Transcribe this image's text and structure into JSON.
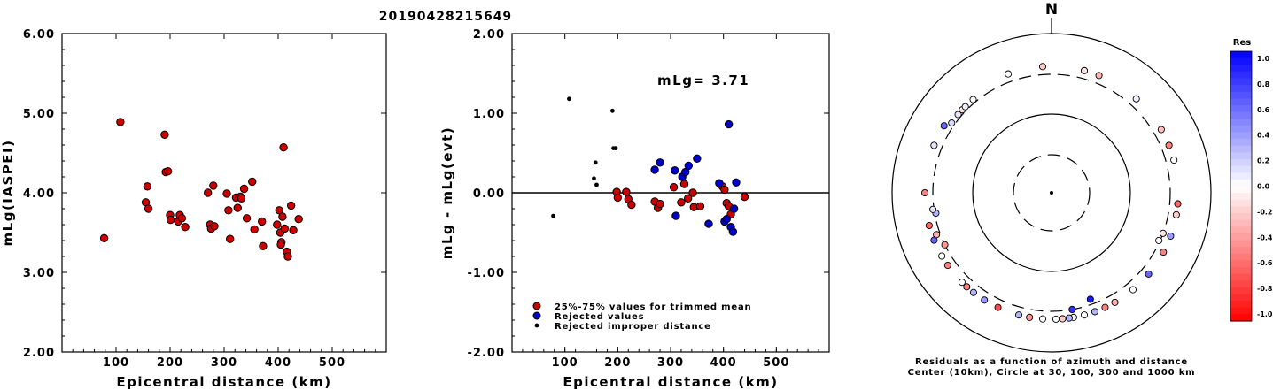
{
  "title": "20190428215649",
  "colors": {
    "accepted": "#cc0000",
    "rejected": "#0000cc",
    "improper": "#000000"
  },
  "chart_data": [
    {
      "type": "scatter",
      "xlabel": "Epicentral distance (km)",
      "ylabel": "mLg(IASPEI)",
      "xlim": [
        0,
        600
      ],
      "ylim": [
        2.0,
        6.0
      ],
      "x_ticks": [
        "100",
        "200",
        "300",
        "400",
        "500"
      ],
      "y_ticks": [
        "2.00",
        "3.00",
        "4.00",
        "5.00",
        "6.00"
      ],
      "points": [
        [
          78,
          3.43
        ],
        [
          108,
          4.89
        ],
        [
          155,
          3.88
        ],
        [
          158,
          4.08
        ],
        [
          160,
          3.8
        ],
        [
          190,
          4.73
        ],
        [
          192,
          4.26
        ],
        [
          196,
          4.27
        ],
        [
          200,
          3.72
        ],
        [
          201,
          3.66
        ],
        [
          215,
          3.64
        ],
        [
          218,
          3.72
        ],
        [
          222,
          3.68
        ],
        [
          228,
          3.57
        ],
        [
          270,
          4.0
        ],
        [
          274,
          3.6
        ],
        [
          276,
          3.55
        ],
        [
          280,
          4.09
        ],
        [
          282,
          3.58
        ],
        [
          305,
          3.99
        ],
        [
          308,
          3.78
        ],
        [
          311,
          3.42
        ],
        [
          322,
          3.94
        ],
        [
          325,
          3.81
        ],
        [
          330,
          3.95
        ],
        [
          332,
          3.93
        ],
        [
          337,
          4.05
        ],
        [
          342,
          3.68
        ],
        [
          352,
          4.14
        ],
        [
          356,
          3.54
        ],
        [
          370,
          3.64
        ],
        [
          372,
          3.33
        ],
        [
          398,
          3.6
        ],
        [
          402,
          3.78
        ],
        [
          404,
          3.5
        ],
        [
          406,
          3.38
        ],
        [
          410,
          4.57
        ],
        [
          412,
          3.55
        ],
        [
          416,
          3.26
        ],
        [
          418,
          3.2
        ],
        [
          424,
          3.84
        ],
        [
          428,
          3.53
        ],
        [
          438,
          3.67
        ],
        [
          405,
          3.35
        ],
        [
          408,
          3.7
        ]
      ]
    },
    {
      "type": "scatter",
      "xlabel": "Epicentral distance (km)",
      "ylabel": "mLg - mLg(evt)",
      "xlim": [
        0,
        600
      ],
      "ylim": [
        -2.0,
        2.0
      ],
      "x_ticks": [
        "100",
        "200",
        "300",
        "400",
        "500"
      ],
      "y_ticks": [
        "-2.00",
        "-1.00",
        "0.00",
        "1.00",
        "2.00"
      ],
      "annotation": "mLg= 3.71",
      "legend": [
        "25%-75% values for trimmed mean",
        "Rejected values",
        "Rejected improper distance"
      ],
      "series": [
        {
          "name": "25%-75% values for trimmed mean",
          "points": [
            [
              198,
              0.01
            ],
            [
              200,
              -0.06
            ],
            [
              216,
              0.01
            ],
            [
              220,
              -0.08
            ],
            [
              226,
              -0.15
            ],
            [
              270,
              -0.11
            ],
            [
              276,
              -0.19
            ],
            [
              280,
              -0.14
            ],
            [
              306,
              0.07
            ],
            [
              320,
              -0.12
            ],
            [
              326,
              0.11
            ],
            [
              333,
              -0.07
            ],
            [
              342,
              0.0
            ],
            [
              344,
              -0.18
            ],
            [
              356,
              -0.17
            ],
            [
              398,
              0.08
            ],
            [
              402,
              0.04
            ],
            [
              406,
              -0.13
            ],
            [
              410,
              -0.17
            ],
            [
              414,
              -0.27
            ],
            [
              440,
              -0.05
            ]
          ]
        },
        {
          "name": "Rejected values",
          "points": [
            [
              270,
              0.29
            ],
            [
              280,
              0.38
            ],
            [
              308,
              0.28
            ],
            [
              310,
              -0.29
            ],
            [
              322,
              0.2
            ],
            [
              328,
              0.26
            ],
            [
              334,
              0.34
            ],
            [
              350,
              0.43
            ],
            [
              372,
              -0.39
            ],
            [
              392,
              0.12
            ],
            [
              402,
              -0.36
            ],
            [
              406,
              -0.33
            ],
            [
              410,
              0.86
            ],
            [
              414,
              -0.43
            ],
            [
              418,
              -0.49
            ],
            [
              420,
              -0.2
            ],
            [
              424,
              0.13
            ]
          ]
        },
        {
          "name": "Rejected improper distance",
          "points": [
            [
              78,
              -0.29
            ],
            [
              108,
              1.18
            ],
            [
              155,
              0.18
            ],
            [
              158,
              0.38
            ],
            [
              160,
              0.1
            ],
            [
              190,
              1.03
            ],
            [
              192,
              0.56
            ],
            [
              196,
              0.56
            ]
          ]
        }
      ]
    },
    {
      "type": "scatter",
      "north_label": "N",
      "colorbar_title": "Res",
      "colorbar_ticks": [
        "1.0",
        "0.8",
        "0.6",
        "0.4",
        "0.2",
        "0.0",
        "-0.2",
        "-0.4",
        "-0.6",
        "-0.8",
        "-1.0"
      ],
      "caption_line1": "Residuals as a function of azimuth and distance",
      "caption_line2": "Center (10km), Circle at 30, 100, 300 and 1000 km",
      "points": [
        [
          15,
          380,
          -0.1
        ],
        [
          22,
          380,
          -0.3
        ],
        [
          42,
          380,
          0.05
        ],
        [
          60,
          380,
          -0.25
        ],
        [
          68,
          380,
          -0.5
        ],
        [
          75,
          380,
          0.0
        ],
        [
          95,
          380,
          -0.6
        ],
        [
          100,
          380,
          -0.2
        ],
        [
          110,
          380,
          0.4
        ],
        [
          118,
          380,
          -0.5
        ],
        [
          130,
          380,
          0.6
        ],
        [
          140,
          380,
          0.0
        ],
        [
          150,
          380,
          -0.3
        ],
        [
          155,
          380,
          -0.5
        ],
        [
          160,
          380,
          0.3
        ],
        [
          165,
          380,
          0.0
        ],
        [
          170,
          380,
          0.0
        ],
        [
          172,
          380,
          0.3
        ],
        [
          175,
          380,
          -0.2
        ],
        [
          178,
          380,
          0.0
        ],
        [
          184,
          380,
          0.0
        ],
        [
          190,
          380,
          -0.4
        ],
        [
          195,
          380,
          0.3
        ],
        [
          205,
          380,
          -0.7
        ],
        [
          212,
          380,
          0.4
        ],
        [
          218,
          380,
          0.3
        ],
        [
          222,
          380,
          -0.5
        ],
        [
          225,
          380,
          0.0
        ],
        [
          235,
          380,
          -0.5
        ],
        [
          240,
          380,
          0.0
        ],
        [
          248,
          380,
          0.6
        ],
        [
          255,
          380,
          -0.6
        ],
        [
          270,
          380,
          -0.5
        ],
        [
          292,
          380,
          0.1
        ],
        [
          302,
          380,
          0.6
        ],
        [
          340,
          380,
          0.0
        ],
        [
          356,
          380,
          -0.2
        ],
        [
          250,
          335,
          -0.3
        ],
        [
          305,
          330,
          0.15
        ],
        [
          310,
          330,
          0.1
        ],
        [
          313,
          330,
          -0.1
        ],
        [
          315,
          330,
          0.05
        ],
        [
          320,
          330,
          0.0
        ],
        [
          160,
          260,
          0.9
        ],
        [
          170,
          300,
          0.8
        ],
        [
          260,
          290,
          0.3
        ],
        [
          262,
          310,
          0.1
        ],
        [
          244,
          300,
          -0.4
        ],
        [
          110,
          300,
          -0.1
        ],
        [
          114,
          290,
          0.0
        ]
      ]
    }
  ]
}
